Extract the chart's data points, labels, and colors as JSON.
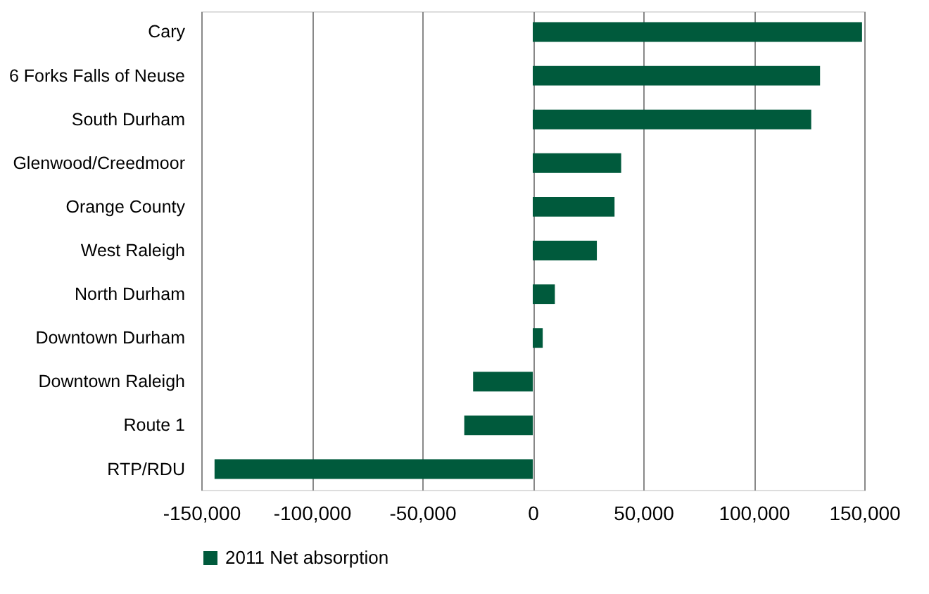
{
  "chart_data": {
    "type": "bar",
    "orientation": "horizontal",
    "categories": [
      "Cary",
      "6 Forks Falls of Neuse",
      "South Durham",
      "Glenwood/Creedmoor",
      "Orange County",
      "West Raleigh",
      "North Durham",
      "Downtown Durham",
      "Downtown Raleigh",
      "Route 1",
      "RTP/RDU"
    ],
    "series": [
      {
        "name": "2011 Net absorption",
        "color": "#005a3c",
        "values": [
          149000,
          130000,
          126000,
          40000,
          37000,
          29000,
          10000,
          4500,
          -27000,
          -31000,
          -144000
        ]
      }
    ],
    "xlim": [
      -150000,
      150000
    ],
    "xticks": [
      {
        "value": -150000,
        "label": "-150,000"
      },
      {
        "value": -100000,
        "label": "-100,000"
      },
      {
        "value": -50000,
        "label": "-50,000"
      },
      0,
      {
        "value": 50000,
        "label": "50,000"
      },
      {
        "value": 100000,
        "label": "100,000"
      },
      {
        "value": 150000,
        "label": "150,000"
      }
    ],
    "grid": "x",
    "legend": "bottom"
  }
}
